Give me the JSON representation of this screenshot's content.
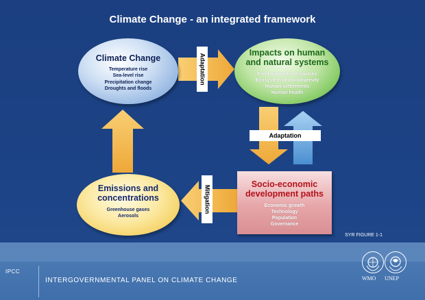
{
  "title": "Climate Change - an integrated framework",
  "nodes": {
    "climate": {
      "title": "Climate Change",
      "items": [
        "Temperature rise",
        "Sea-level rise",
        "Precipitation change",
        "Droughts and floods"
      ]
    },
    "impacts": {
      "title_line1": "Impacts on human",
      "title_line2": "and natural systems",
      "items": [
        "Food and water resources",
        "Ecosystem and biodiversity",
        "Human settlements",
        "Human health"
      ]
    },
    "emissions": {
      "title_line1": "Emissions and",
      "title_line2": "concentrations",
      "items": [
        "Greenhouse gases",
        "Aerosols"
      ]
    },
    "socio": {
      "title_line1": "Socio-economic",
      "title_line2": "development paths",
      "items": [
        "Economic growth",
        "Technology",
        "Population",
        "Governance"
      ]
    }
  },
  "labels": {
    "adaptation_top": "Adaptation",
    "adaptation_mid": "Adaptation",
    "mitigation": "Mitigation"
  },
  "figure_ref": "SYR FIGURE 1-1",
  "footer": {
    "ipcc": "IPCC",
    "panel_name": "INTERGOVERNMENTAL PANEL ON CLIMATE CHANGE",
    "wmo": "WMO",
    "unep": "UNEP"
  },
  "colors": {
    "arrow_orange": "#f5b84e",
    "arrow_blue": "#5b9fd9",
    "background": "#1b3f80"
  }
}
